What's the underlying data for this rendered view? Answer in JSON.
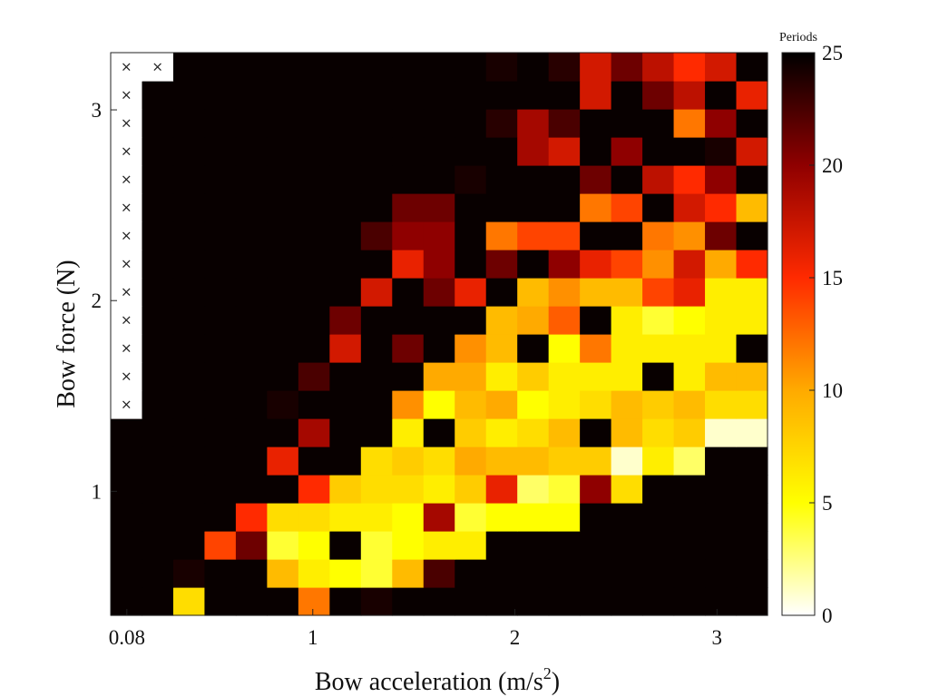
{
  "chart_data": {
    "type": "heatmap",
    "xlabel": "Bow acceleration (m/s",
    "xlabel_sup": "2",
    "xlabel_tail": ")",
    "ylabel": "Bow force (N)",
    "colorbar_title": "Periods",
    "colormap": "hot (reversed)",
    "zlim": [
      0,
      25
    ],
    "colorbar_ticks": [
      "0",
      "5",
      "10",
      "15",
      "20",
      "25"
    ],
    "x_ticks": [
      {
        "label": "0.08",
        "value": 0.08
      },
      {
        "label": "1",
        "value": 1
      },
      {
        "label": "2",
        "value": 2
      },
      {
        "label": "3",
        "value": 3
      }
    ],
    "y_ticks": [
      {
        "label": "1",
        "value": 1
      },
      {
        "label": "2",
        "value": 2
      },
      {
        "label": "3",
        "value": 3
      }
    ],
    "xlim": [
      0.0,
      3.25
    ],
    "ylim": [
      0.35,
      3.3
    ],
    "x_centers": [
      0.08,
      0.24,
      0.4,
      0.55,
      0.71,
      0.86,
      1.02,
      1.18,
      1.33,
      1.49,
      1.64,
      1.8,
      1.95,
      2.11,
      2.27,
      2.42,
      2.58,
      2.73,
      2.89,
      3.05,
      3.2
    ],
    "y_centers": [
      0.42,
      0.57,
      0.71,
      0.86,
      1.01,
      1.15,
      1.3,
      1.45,
      1.59,
      1.74,
      1.89,
      2.03,
      2.18,
      2.33,
      2.47,
      2.62,
      2.77,
      2.91,
      3.06,
      3.2
    ],
    "no_data_symbol": "×",
    "values": [
      [
        25,
        25,
        7,
        25,
        25,
        25,
        12,
        25,
        24,
        25,
        25,
        25,
        25,
        25,
        25,
        25,
        25,
        25,
        25,
        25,
        25
      ],
      [
        25,
        25,
        24,
        25,
        25,
        9,
        6,
        5,
        4,
        9,
        22,
        25,
        25,
        25,
        25,
        25,
        25,
        25,
        25,
        25,
        25
      ],
      [
        25,
        25,
        25,
        14,
        21,
        4,
        5,
        25,
        4,
        5,
        6,
        6,
        25,
        25,
        25,
        25,
        25,
        25,
        25,
        25,
        25
      ],
      [
        25,
        25,
        25,
        25,
        15,
        7,
        7,
        6,
        6,
        5,
        19,
        4,
        5,
        5,
        5,
        25,
        25,
        25,
        25,
        25,
        25
      ],
      [
        25,
        25,
        25,
        25,
        25,
        25,
        15,
        8,
        7,
        7,
        6,
        8,
        16,
        3,
        4,
        20,
        7,
        25,
        25,
        25,
        25
      ],
      [
        25,
        25,
        25,
        25,
        25,
        16,
        25,
        25,
        7,
        8,
        7,
        10,
        9,
        9,
        8,
        8,
        1,
        6,
        3,
        25,
        25
      ],
      [
        25,
        25,
        25,
        25,
        25,
        25,
        19,
        25,
        25,
        6,
        25,
        8,
        6,
        7,
        9,
        25,
        9,
        7,
        8,
        1,
        1
      ],
      [
        null,
        25,
        25,
        25,
        25,
        24,
        25,
        25,
        25,
        11,
        5,
        9,
        10,
        5,
        6,
        7,
        9,
        8,
        9,
        7,
        7
      ],
      [
        null,
        25,
        25,
        25,
        25,
        25,
        22,
        25,
        25,
        25,
        10,
        10,
        6,
        8,
        6,
        6,
        6,
        25,
        6,
        9,
        9
      ],
      [
        null,
        25,
        25,
        25,
        25,
        25,
        25,
        17,
        25,
        21,
        25,
        11,
        9,
        25,
        5,
        12,
        6,
        6,
        6,
        6,
        25
      ],
      [
        null,
        25,
        25,
        25,
        25,
        25,
        25,
        21,
        25,
        25,
        25,
        25,
        9,
        10,
        13,
        25,
        6,
        4,
        5,
        6,
        6
      ],
      [
        null,
        25,
        25,
        25,
        25,
        25,
        25,
        25,
        17,
        25,
        21,
        16,
        25,
        9,
        11,
        9,
        9,
        14,
        16,
        6,
        6
      ],
      [
        null,
        25,
        25,
        25,
        25,
        25,
        25,
        25,
        25,
        16,
        20,
        25,
        21,
        25,
        20,
        16,
        14,
        11,
        17,
        10,
        15
      ],
      [
        null,
        25,
        25,
        25,
        25,
        25,
        25,
        25,
        22,
        20,
        20,
        25,
        12,
        14,
        14,
        25,
        25,
        12,
        11,
        21,
        25
      ],
      [
        null,
        25,
        25,
        25,
        25,
        25,
        25,
        25,
        25,
        21,
        21,
        25,
        25,
        25,
        25,
        12,
        14,
        25,
        17,
        15,
        9
      ],
      [
        null,
        25,
        25,
        25,
        25,
        25,
        25,
        25,
        25,
        25,
        25,
        24,
        25,
        25,
        25,
        21,
        25,
        18,
        15,
        20,
        25
      ],
      [
        null,
        25,
        25,
        25,
        25,
        25,
        25,
        25,
        25,
        25,
        25,
        25,
        25,
        19,
        17,
        25,
        20,
        25,
        25,
        24,
        17
      ],
      [
        null,
        25,
        25,
        25,
        25,
        25,
        25,
        25,
        25,
        25,
        25,
        25,
        23,
        19,
        22,
        25,
        25,
        25,
        12,
        20,
        25
      ],
      [
        null,
        25,
        25,
        25,
        25,
        25,
        25,
        25,
        25,
        25,
        25,
        25,
        25,
        25,
        25,
        17,
        25,
        21,
        18,
        25,
        16
      ],
      [
        null,
        null,
        25,
        25,
        25,
        25,
        25,
        25,
        25,
        25,
        25,
        25,
        24,
        25,
        23,
        17,
        21,
        18,
        15,
        17,
        25
      ]
    ]
  }
}
